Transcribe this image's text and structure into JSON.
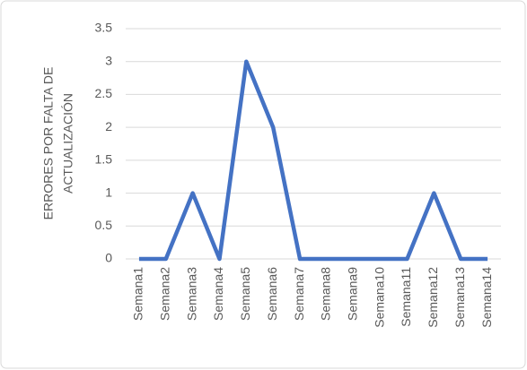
{
  "chart_data": {
    "type": "line",
    "ylabel": [
      "ERRORES POR FALTA DE",
      "ACTUALIZACIÓN"
    ],
    "categories": [
      "Semana1",
      "Semana2",
      "Semana3",
      "Semana4",
      "Semana5",
      "Semana6",
      "Semana7",
      "Semana8",
      "Semana9",
      "Semana10",
      "Semana11",
      "Semana12",
      "Semana13",
      "Semana14"
    ],
    "values": [
      0,
      0,
      1,
      0,
      3,
      2,
      0,
      0,
      0,
      0,
      0,
      1,
      0,
      0
    ],
    "color": "#4472c4",
    "ylim": [
      0,
      3.5
    ],
    "yticks": [
      0,
      0.5,
      1,
      1.5,
      2,
      2.5,
      3,
      3.5
    ],
    "grid": true
  }
}
